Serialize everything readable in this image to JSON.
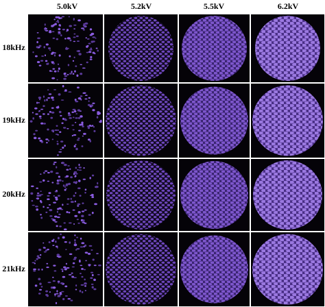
{
  "columns": [
    "5.0kV",
    "5.2kV",
    "5.5kV",
    "6.2kV"
  ],
  "rows": [
    "18kHz",
    "19kHz",
    "20kHz",
    "21kHz"
  ]
}
